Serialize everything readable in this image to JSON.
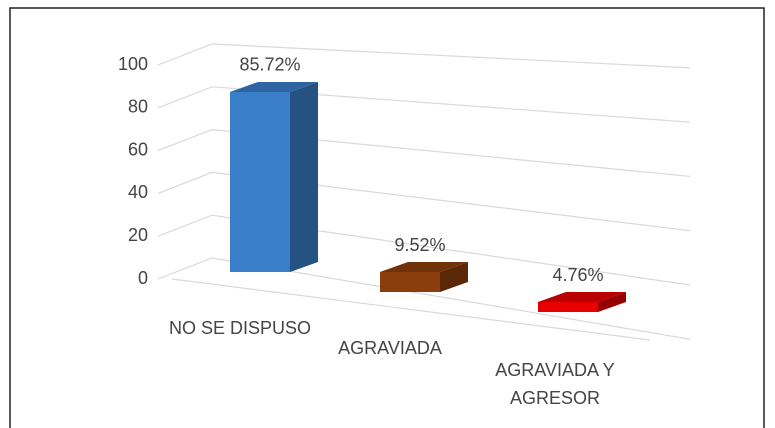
{
  "chart_data": {
    "type": "bar3d",
    "categories": [
      "NO SE DISPUSO",
      "AGRAVIADA",
      "AGRAVIADA Y AGRESOR"
    ],
    "values": [
      85.72,
      9.52,
      4.76
    ],
    "value_labels": [
      "85.72%",
      "9.52%",
      "4.76%"
    ],
    "colors": [
      "#3a7dc9",
      "#8b3e0b",
      "#e60000"
    ],
    "ylim": [
      0,
      100
    ],
    "yticks": [
      0,
      20,
      40,
      60,
      80,
      100
    ],
    "grid": true
  }
}
